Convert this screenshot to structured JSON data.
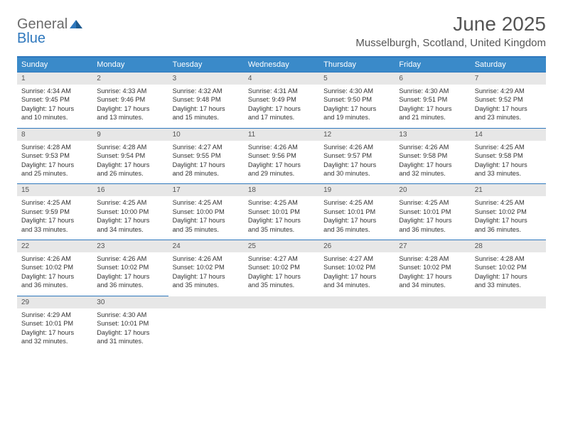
{
  "logo": {
    "textGray": "General",
    "textBlue": "Blue"
  },
  "header": {
    "monthTitle": "June 2025",
    "location": "Musselburgh, Scotland, United Kingdom"
  },
  "colors": {
    "headerBg": "#3a8ac9",
    "borderBlue": "#2f78bd",
    "dayNumBg": "#e7e7e7",
    "pageBg": "#ffffff",
    "textGray": "#6b6b6b"
  },
  "daysOfWeek": [
    "Sunday",
    "Monday",
    "Tuesday",
    "Wednesday",
    "Thursday",
    "Friday",
    "Saturday"
  ],
  "weeks": [
    [
      {
        "n": "1",
        "sr": "Sunrise: 4:34 AM",
        "ss": "Sunset: 9:45 PM",
        "dl1": "Daylight: 17 hours",
        "dl2": "and 10 minutes."
      },
      {
        "n": "2",
        "sr": "Sunrise: 4:33 AM",
        "ss": "Sunset: 9:46 PM",
        "dl1": "Daylight: 17 hours",
        "dl2": "and 13 minutes."
      },
      {
        "n": "3",
        "sr": "Sunrise: 4:32 AM",
        "ss": "Sunset: 9:48 PM",
        "dl1": "Daylight: 17 hours",
        "dl2": "and 15 minutes."
      },
      {
        "n": "4",
        "sr": "Sunrise: 4:31 AM",
        "ss": "Sunset: 9:49 PM",
        "dl1": "Daylight: 17 hours",
        "dl2": "and 17 minutes."
      },
      {
        "n": "5",
        "sr": "Sunrise: 4:30 AM",
        "ss": "Sunset: 9:50 PM",
        "dl1": "Daylight: 17 hours",
        "dl2": "and 19 minutes."
      },
      {
        "n": "6",
        "sr": "Sunrise: 4:30 AM",
        "ss": "Sunset: 9:51 PM",
        "dl1": "Daylight: 17 hours",
        "dl2": "and 21 minutes."
      },
      {
        "n": "7",
        "sr": "Sunrise: 4:29 AM",
        "ss": "Sunset: 9:52 PM",
        "dl1": "Daylight: 17 hours",
        "dl2": "and 23 minutes."
      }
    ],
    [
      {
        "n": "8",
        "sr": "Sunrise: 4:28 AM",
        "ss": "Sunset: 9:53 PM",
        "dl1": "Daylight: 17 hours",
        "dl2": "and 25 minutes."
      },
      {
        "n": "9",
        "sr": "Sunrise: 4:28 AM",
        "ss": "Sunset: 9:54 PM",
        "dl1": "Daylight: 17 hours",
        "dl2": "and 26 minutes."
      },
      {
        "n": "10",
        "sr": "Sunrise: 4:27 AM",
        "ss": "Sunset: 9:55 PM",
        "dl1": "Daylight: 17 hours",
        "dl2": "and 28 minutes."
      },
      {
        "n": "11",
        "sr": "Sunrise: 4:26 AM",
        "ss": "Sunset: 9:56 PM",
        "dl1": "Daylight: 17 hours",
        "dl2": "and 29 minutes."
      },
      {
        "n": "12",
        "sr": "Sunrise: 4:26 AM",
        "ss": "Sunset: 9:57 PM",
        "dl1": "Daylight: 17 hours",
        "dl2": "and 30 minutes."
      },
      {
        "n": "13",
        "sr": "Sunrise: 4:26 AM",
        "ss": "Sunset: 9:58 PM",
        "dl1": "Daylight: 17 hours",
        "dl2": "and 32 minutes."
      },
      {
        "n": "14",
        "sr": "Sunrise: 4:25 AM",
        "ss": "Sunset: 9:58 PM",
        "dl1": "Daylight: 17 hours",
        "dl2": "and 33 minutes."
      }
    ],
    [
      {
        "n": "15",
        "sr": "Sunrise: 4:25 AM",
        "ss": "Sunset: 9:59 PM",
        "dl1": "Daylight: 17 hours",
        "dl2": "and 33 minutes."
      },
      {
        "n": "16",
        "sr": "Sunrise: 4:25 AM",
        "ss": "Sunset: 10:00 PM",
        "dl1": "Daylight: 17 hours",
        "dl2": "and 34 minutes."
      },
      {
        "n": "17",
        "sr": "Sunrise: 4:25 AM",
        "ss": "Sunset: 10:00 PM",
        "dl1": "Daylight: 17 hours",
        "dl2": "and 35 minutes."
      },
      {
        "n": "18",
        "sr": "Sunrise: 4:25 AM",
        "ss": "Sunset: 10:01 PM",
        "dl1": "Daylight: 17 hours",
        "dl2": "and 35 minutes."
      },
      {
        "n": "19",
        "sr": "Sunrise: 4:25 AM",
        "ss": "Sunset: 10:01 PM",
        "dl1": "Daylight: 17 hours",
        "dl2": "and 36 minutes."
      },
      {
        "n": "20",
        "sr": "Sunrise: 4:25 AM",
        "ss": "Sunset: 10:01 PM",
        "dl1": "Daylight: 17 hours",
        "dl2": "and 36 minutes."
      },
      {
        "n": "21",
        "sr": "Sunrise: 4:25 AM",
        "ss": "Sunset: 10:02 PM",
        "dl1": "Daylight: 17 hours",
        "dl2": "and 36 minutes."
      }
    ],
    [
      {
        "n": "22",
        "sr": "Sunrise: 4:26 AM",
        "ss": "Sunset: 10:02 PM",
        "dl1": "Daylight: 17 hours",
        "dl2": "and 36 minutes."
      },
      {
        "n": "23",
        "sr": "Sunrise: 4:26 AM",
        "ss": "Sunset: 10:02 PM",
        "dl1": "Daylight: 17 hours",
        "dl2": "and 36 minutes."
      },
      {
        "n": "24",
        "sr": "Sunrise: 4:26 AM",
        "ss": "Sunset: 10:02 PM",
        "dl1": "Daylight: 17 hours",
        "dl2": "and 35 minutes."
      },
      {
        "n": "25",
        "sr": "Sunrise: 4:27 AM",
        "ss": "Sunset: 10:02 PM",
        "dl1": "Daylight: 17 hours",
        "dl2": "and 35 minutes."
      },
      {
        "n": "26",
        "sr": "Sunrise: 4:27 AM",
        "ss": "Sunset: 10:02 PM",
        "dl1": "Daylight: 17 hours",
        "dl2": "and 34 minutes."
      },
      {
        "n": "27",
        "sr": "Sunrise: 4:28 AM",
        "ss": "Sunset: 10:02 PM",
        "dl1": "Daylight: 17 hours",
        "dl2": "and 34 minutes."
      },
      {
        "n": "28",
        "sr": "Sunrise: 4:28 AM",
        "ss": "Sunset: 10:02 PM",
        "dl1": "Daylight: 17 hours",
        "dl2": "and 33 minutes."
      }
    ],
    [
      {
        "n": "29",
        "sr": "Sunrise: 4:29 AM",
        "ss": "Sunset: 10:01 PM",
        "dl1": "Daylight: 17 hours",
        "dl2": "and 32 minutes."
      },
      {
        "n": "30",
        "sr": "Sunrise: 4:30 AM",
        "ss": "Sunset: 10:01 PM",
        "dl1": "Daylight: 17 hours",
        "dl2": "and 31 minutes."
      },
      null,
      null,
      null,
      null,
      null
    ]
  ]
}
